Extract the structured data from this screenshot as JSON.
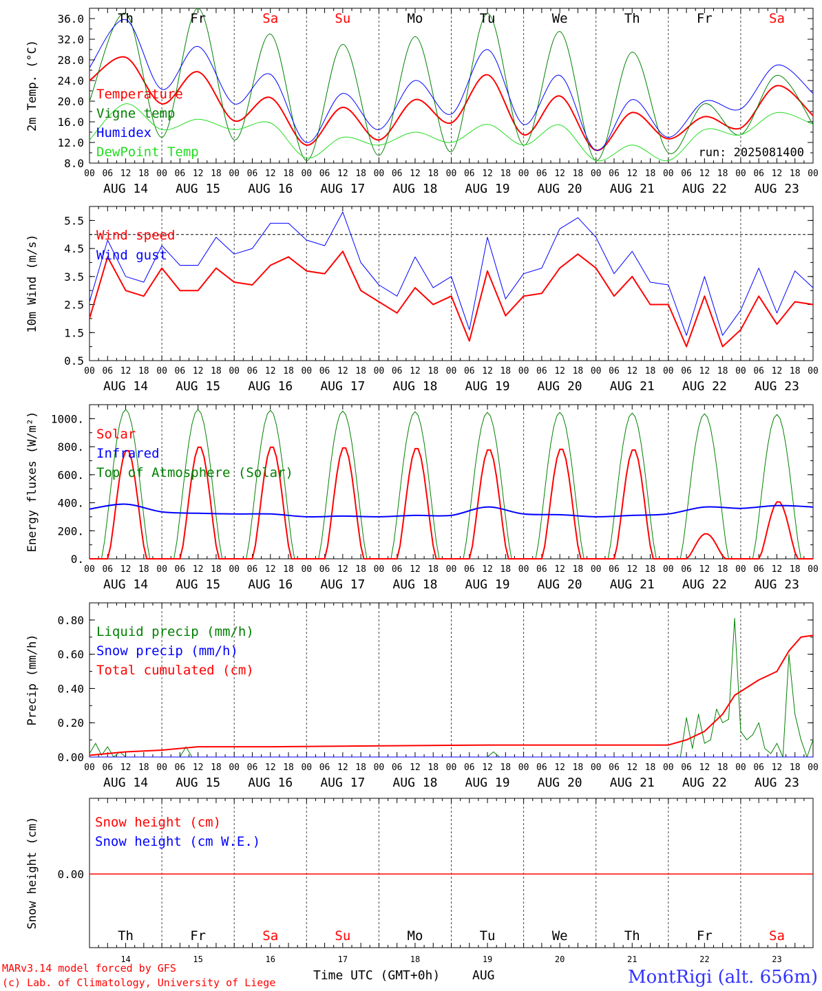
{
  "days": [
    "Th",
    "Fr",
    "Sa",
    "Su",
    "Mo",
    "Tu",
    "We",
    "Th",
    "Fr",
    "Sa"
  ],
  "weekend_days": [
    2,
    3,
    9
  ],
  "dates": [
    "AUG 14",
    "AUG 15",
    "AUG 16",
    "AUG 17",
    "AUG 18",
    "AUG 19",
    "AUG 20",
    "AUG 21",
    "AUG 22",
    "AUG 23"
  ],
  "hour_ticks": [
    "00",
    "06",
    "12",
    "18"
  ],
  "final_tick": "00",
  "day_numbers": [
    "14",
    "15",
    "16",
    "17",
    "18",
    "19",
    "20",
    "21",
    "22",
    "23"
  ],
  "footer": {
    "model": "MARv3.14 model forced by GFS",
    "credit": "(c) Lab. of Climatology, University of Liege",
    "axis": "Time UTC (GMT+0h)",
    "month": "AUG",
    "station": "MontRigi (alt. 656m)"
  },
  "colors": {
    "red": "#ff0000",
    "green": "#008000",
    "blue": "#0000ff",
    "lightgreen": "#22dd22",
    "weekend": "#ff0000"
  },
  "chart_data": [
    {
      "type": "line",
      "ylabel": "2m Temp. (°C)",
      "ylim": [
        8,
        38
      ],
      "yticks": [
        "8.0",
        "12.0",
        "16.0",
        "20.0",
        "24.0",
        "28.0",
        "32.0",
        "36.0"
      ],
      "annotation": "run: 2025081400",
      "x_hours": [
        0,
        12,
        24,
        36,
        48,
        60,
        72,
        84,
        96,
        108,
        120,
        132,
        144,
        156,
        168,
        180,
        192,
        204,
        216,
        228,
        240
      ],
      "series": [
        {
          "name": "Temperature",
          "color": "#ff0000",
          "values": [
            24,
            28.5,
            19.5,
            25.7,
            16.2,
            20.7,
            11.5,
            18.8,
            12.5,
            20.3,
            15.8,
            25.1,
            13.5,
            21,
            10.5,
            17.8,
            12.7,
            17,
            14.8,
            23,
            17.2
          ]
        },
        {
          "name": "Vigne temp",
          "color": "#008000",
          "values": [
            20,
            37,
            13,
            38,
            12.5,
            33,
            8.5,
            31,
            9.5,
            32.5,
            10.2,
            37,
            11.5,
            33.5,
            8.5,
            29.5,
            10,
            19.5,
            13.5,
            25,
            15.5
          ]
        },
        {
          "name": "Humidex",
          "color": "#0000ff",
          "values": [
            26.5,
            35.8,
            22.3,
            30.6,
            19.5,
            25.2,
            12,
            21.5,
            14.5,
            24,
            17.5,
            30,
            15.5,
            25,
            10.5,
            20.3,
            13,
            20,
            18.5,
            27,
            21.5
          ]
        },
        {
          "name": "DewPoint Temp",
          "color": "#22dd22",
          "values": [
            12.5,
            19.5,
            14.5,
            16.5,
            14.5,
            15.8,
            9,
            13,
            11.5,
            14,
            12,
            15.5,
            11.5,
            15.4,
            8.5,
            11.5,
            8.5,
            14.5,
            13.5,
            17.8,
            15.5
          ]
        }
      ]
    },
    {
      "type": "line",
      "ylabel": "10m Wind (m/s)",
      "ylim": [
        0.5,
        6
      ],
      "yticks": [
        "0.5",
        "1.5",
        "2.5",
        "3.5",
        "4.5",
        "5.5"
      ],
      "reference_line": 5.0,
      "x_hours": [
        0,
        6,
        12,
        18,
        24,
        30,
        36,
        42,
        48,
        54,
        60,
        66,
        72,
        78,
        84,
        90,
        96,
        102,
        108,
        114,
        120,
        126,
        132,
        138,
        144,
        150,
        156,
        162,
        168,
        174,
        180,
        186,
        192,
        198,
        204,
        210,
        216,
        222,
        228,
        234,
        240
      ],
      "series": [
        {
          "name": "Wind speed",
          "color": "#ff0000",
          "values": [
            2,
            4.2,
            3,
            2.8,
            3.8,
            3,
            3,
            3.8,
            3.3,
            3.2,
            3.9,
            4.2,
            3.7,
            3.6,
            4.4,
            3,
            2.6,
            2.2,
            3.1,
            2.5,
            2.8,
            1.2,
            3.7,
            2.1,
            2.8,
            2.9,
            3.8,
            4.3,
            3.8,
            2.8,
            3.5,
            2.5,
            2.5,
            1,
            2.8,
            1,
            1.6,
            2.8,
            1.8,
            2.6,
            2.5
          ]
        },
        {
          "name": "Wind gust",
          "color": "#0000ff",
          "values": [
            2.6,
            4.8,
            3.5,
            3.3,
            4.6,
            3.9,
            3.9,
            4.9,
            4.3,
            4.5,
            5.4,
            5.4,
            4.8,
            4.6,
            5.8,
            4,
            3.2,
            2.8,
            4.2,
            3.1,
            3.5,
            1.6,
            4.9,
            2.7,
            3.6,
            3.8,
            5.2,
            5.6,
            4.9,
            3.6,
            4.4,
            3.3,
            3.2,
            1.4,
            3.5,
            1.4,
            2.3,
            3.8,
            2.2,
            3.7,
            3.1
          ]
        }
      ]
    },
    {
      "type": "line",
      "ylabel": "Energy fluxes (W/m²)",
      "ylim": [
        0,
        1100
      ],
      "yticks": [
        "0.",
        "200.",
        "400.",
        "600.",
        "800.",
        "1000."
      ],
      "series": [
        {
          "name": "Solar",
          "color": "#ff0000",
          "daily_peaks": [
            780,
            805,
            805,
            800,
            795,
            785,
            790,
            785,
            180,
            410
          ]
        },
        {
          "name": "Infrared",
          "color": "#0000ff",
          "x_hours": [
            0,
            12,
            24,
            36,
            48,
            60,
            72,
            84,
            96,
            108,
            120,
            132,
            144,
            156,
            168,
            180,
            192,
            204,
            216,
            228,
            240
          ],
          "values": [
            355,
            390,
            335,
            325,
            320,
            320,
            300,
            305,
            300,
            310,
            310,
            370,
            320,
            315,
            300,
            310,
            320,
            370,
            360,
            380,
            370
          ]
        },
        {
          "name": "Top of Atmosphere (Solar)",
          "color": "#008000",
          "daily_peaks": [
            1065,
            1065,
            1060,
            1055,
            1050,
            1045,
            1045,
            1040,
            1035,
            1030
          ]
        }
      ]
    },
    {
      "type": "line",
      "ylabel": "Precip (mm/h)",
      "ylim": [
        0,
        0.9
      ],
      "yticks": [
        "0.00",
        "0.20",
        "0.40",
        "0.60",
        "0.80"
      ],
      "series": [
        {
          "name": "Liquid precip (mm/h)",
          "color": "#008000",
          "x_hours": [
            0,
            2,
            4,
            6,
            8,
            10,
            12,
            30,
            32,
            34,
            132,
            134,
            136,
            196,
            198,
            200,
            202,
            204,
            206,
            208,
            210,
            212,
            214,
            216,
            218,
            220,
            222,
            224,
            226,
            228,
            230,
            232,
            234,
            236,
            238,
            240
          ],
          "values": [
            0.02,
            0.08,
            0.01,
            0.06,
            0,
            0.03,
            0,
            0,
            0.06,
            0,
            0,
            0.03,
            0,
            0,
            0.23,
            0.05,
            0.25,
            0.08,
            0.1,
            0.28,
            0.2,
            0.22,
            0.81,
            0.15,
            0.1,
            0.13,
            0.2,
            0.05,
            0.02,
            0.08,
            0,
            0.6,
            0.25,
            0.1,
            0,
            0.1
          ]
        },
        {
          "name": "Snow precip (mm/h)",
          "color": "#0000ff",
          "x_hours": [
            0,
            240
          ],
          "values": [
            0,
            0
          ]
        },
        {
          "name": "Total cumulated (cm)",
          "color": "#ff0000",
          "x_hours": [
            0,
            12,
            24,
            36,
            60,
            132,
            144,
            192,
            198,
            204,
            210,
            214,
            222,
            228,
            232,
            236,
            240
          ],
          "values": [
            0.01,
            0.03,
            0.04,
            0.06,
            0.06,
            0.07,
            0.07,
            0.07,
            0.1,
            0.15,
            0.25,
            0.36,
            0.45,
            0.5,
            0.62,
            0.7,
            0.71
          ]
        }
      ]
    },
    {
      "type": "line",
      "ylabel": "Snow height (cm)",
      "yticks": [
        "0.00"
      ],
      "series": [
        {
          "name": "Snow height (cm)",
          "color": "#ff0000",
          "x_hours": [
            0,
            240
          ],
          "values": [
            0,
            0
          ]
        },
        {
          "name": "Snow height (cm W.E.)",
          "color": "#0000ff",
          "x_hours": [
            0,
            240
          ],
          "values": [
            0,
            0
          ]
        }
      ]
    }
  ]
}
